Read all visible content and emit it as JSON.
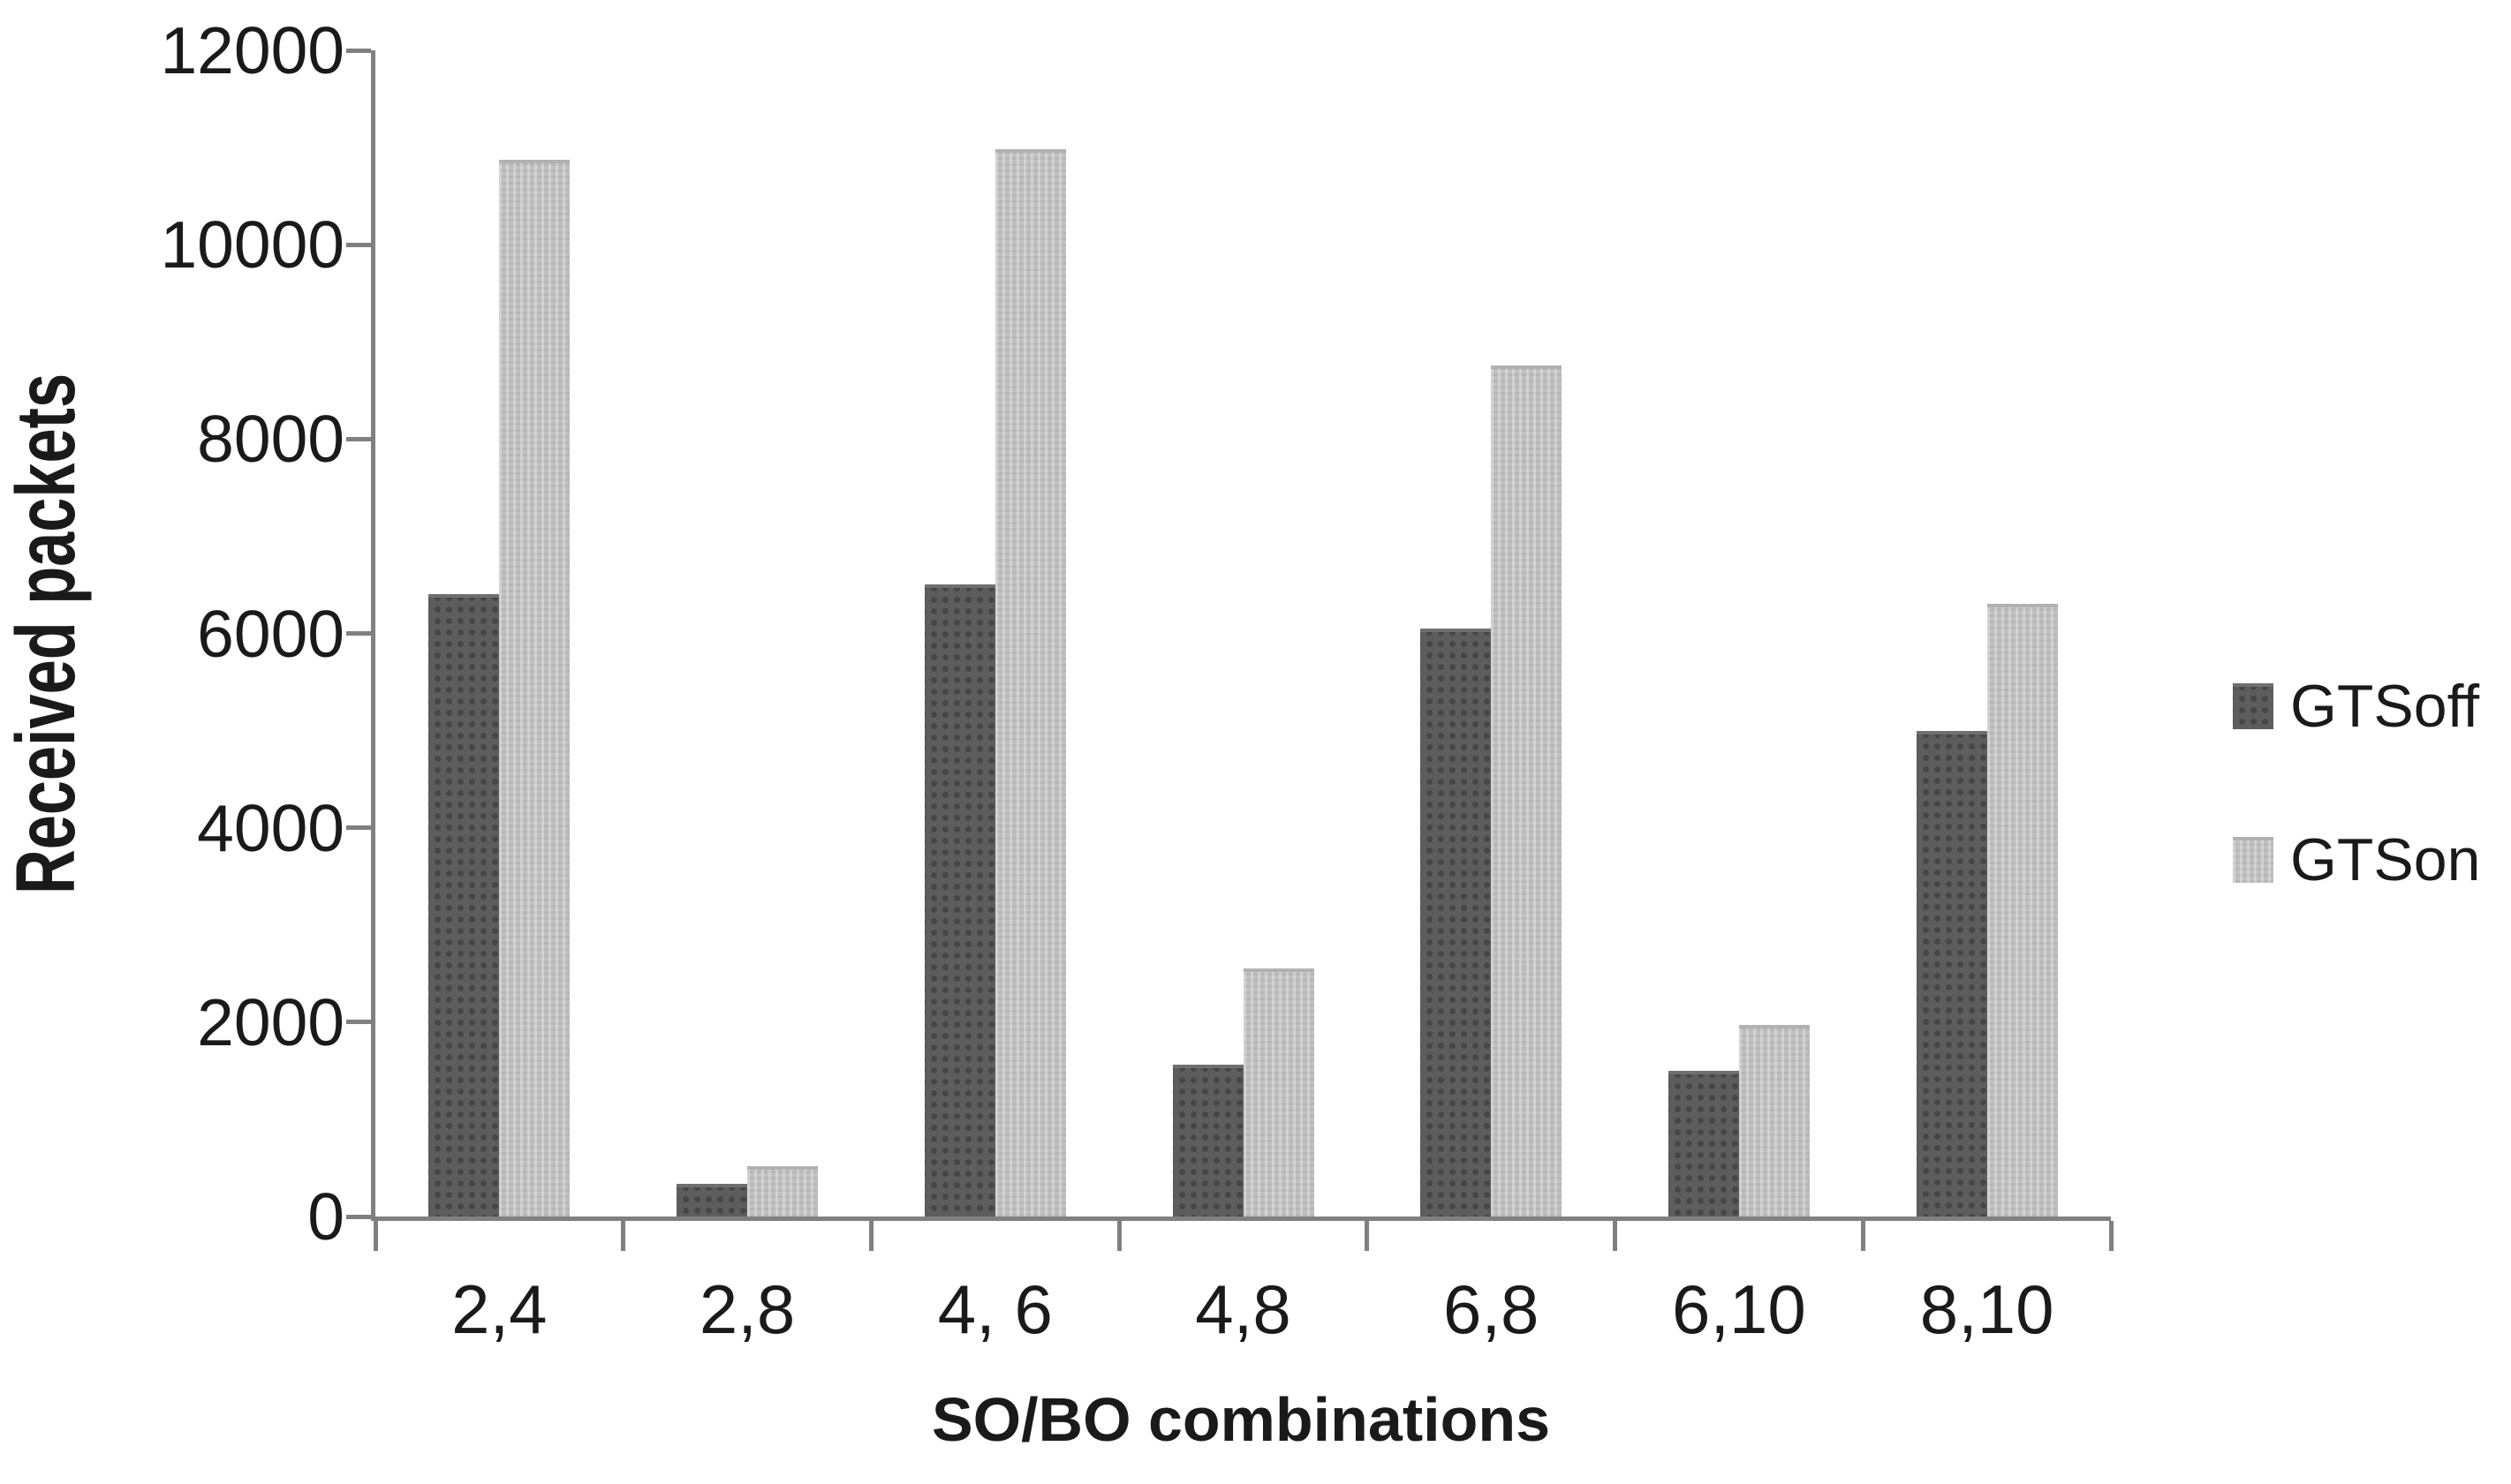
{
  "chart_data": {
    "type": "bar",
    "title": "",
    "categories": [
      "2,4",
      "2,8",
      "4, 6",
      "4,8",
      "6,8",
      "6,10",
      "8,10"
    ],
    "series": [
      {
        "name": "GTSoff",
        "color": "#5d5d5d",
        "pattern": "dots",
        "values": [
          6400,
          340,
          6500,
          1560,
          6050,
          1500,
          5000
        ]
      },
      {
        "name": "GTSon",
        "color": "#c1c1c1",
        "pattern": "checker",
        "values": [
          10870,
          520,
          10980,
          2550,
          8760,
          1970,
          6300
        ]
      }
    ],
    "xlabel": "SO/BO combinations",
    "ylabel": "Received packets",
    "ylim": [
      0,
      12000
    ],
    "yticks": [
      0,
      2000,
      4000,
      6000,
      8000,
      10000,
      12000
    ],
    "grid": false,
    "legend_position": "right",
    "axis_color": "#808080",
    "text_color": "#1a1a1a",
    "background_color": "#ffffff"
  }
}
